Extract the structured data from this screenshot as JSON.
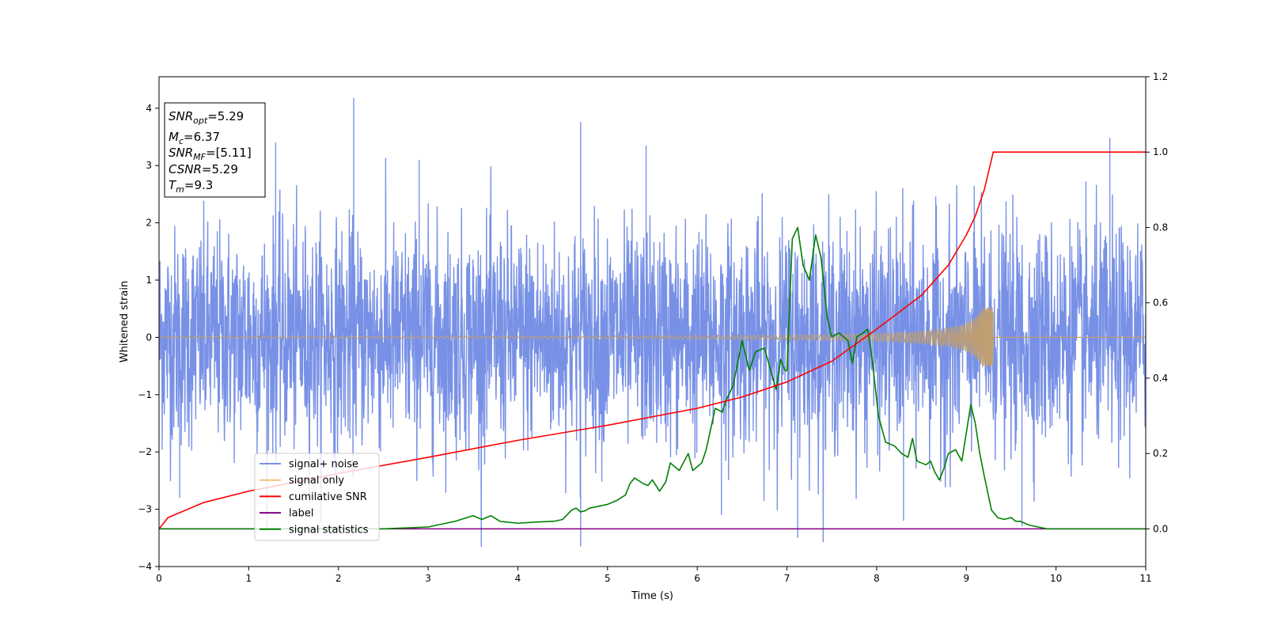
{
  "chart_data": {
    "type": "line",
    "title": "",
    "xlabel": "Time (s)",
    "ylabel": "Whitened strain",
    "xlim": [
      0,
      11
    ],
    "ylim_left": [
      -4,
      4.55
    ],
    "ylim_right": [
      -0.1,
      1.2
    ],
    "xticks": [
      "0",
      "1",
      "2",
      "3",
      "4",
      "5",
      "6",
      "7",
      "8",
      "9",
      "10",
      "11"
    ],
    "yticks_left": [
      "−4",
      "−3",
      "−2",
      "−1",
      "0",
      "1",
      "2",
      "3",
      "4"
    ],
    "yticks_right": [
      "0.0",
      "0.2",
      "0.4",
      "0.6",
      "0.8",
      "1.0",
      "1.2"
    ],
    "grid": false,
    "legend_placement": "lower-left",
    "legend": [
      {
        "label": "signal+ noise",
        "color": "#7891e6"
      },
      {
        "label": "signal only",
        "color": "#f5c27a"
      },
      {
        "label": "cumilative SNR",
        "color": "#ff0000"
      },
      {
        "label": "label",
        "color": "#800080"
      },
      {
        "label": "signal statistics",
        "color": "#008000"
      }
    ],
    "info_box": {
      "snr_opt": {
        "main": "SNR",
        "sub": "opt",
        "value": "=5.29"
      },
      "mc": {
        "main": "M",
        "sub": "c",
        "value": "=6.37"
      },
      "snr_mf": {
        "main": "SNR",
        "sub": "MF",
        "value": "=[5.11]"
      },
      "csnr": {
        "main": "CSNR",
        "value": "=5.29"
      },
      "tm": {
        "main": "T",
        "sub": "m",
        "value": "=9.3"
      }
    },
    "series": [
      {
        "name": "signal+ noise",
        "axis": "left",
        "color": "#7891e6",
        "noise_std": 1.0,
        "noise_range": [
          -3.65,
          4.18
        ],
        "spike_peaks": [
          {
            "x": 2.17,
            "y": 4.18
          },
          {
            "x": 4.7,
            "y": 3.76
          },
          {
            "x": 10.6,
            "y": 3.48
          },
          {
            "x": 1.3,
            "y": 3.4
          },
          {
            "x": 5.43,
            "y": 3.35
          },
          {
            "x": 2.9,
            "y": 3.1
          },
          {
            "x": 4.7,
            "y": -3.65
          },
          {
            "x": 7.12,
            "y": -3.5
          },
          {
            "x": 0.23,
            "y": -2.8
          },
          {
            "x": 6.27,
            "y": -3.1
          },
          {
            "x": 8.3,
            "y": -3.2
          },
          {
            "x": 9.62,
            "y": -3.3
          }
        ]
      },
      {
        "name": "signal only",
        "axis": "left",
        "color": "#f5c27a",
        "end_time": 9.3,
        "peak_amplitude": 0.52
      },
      {
        "name": "cumilative SNR",
        "axis": "right",
        "color": "#ff0000",
        "x": [
          0,
          0.1,
          0.5,
          1,
          2,
          3,
          4,
          5,
          6,
          6.5,
          7,
          7.5,
          8,
          8.5,
          8.8,
          9.0,
          9.1,
          9.2,
          9.28,
          9.3,
          11
        ],
        "y": [
          0.0,
          0.03,
          0.07,
          0.1,
          0.147,
          0.19,
          0.235,
          0.275,
          0.32,
          0.35,
          0.39,
          0.445,
          0.53,
          0.62,
          0.7,
          0.78,
          0.83,
          0.9,
          0.98,
          1.0,
          1.0
        ]
      },
      {
        "name": "label",
        "axis": "right",
        "color": "#800080",
        "x": [
          0,
          11
        ],
        "y": [
          0,
          0
        ]
      },
      {
        "name": "signal statistics",
        "axis": "right",
        "color": "#008000",
        "x": [
          0,
          2.5,
          3.0,
          3.3,
          3.5,
          3.6,
          3.7,
          3.8,
          4.0,
          4.2,
          4.4,
          4.5,
          4.6,
          4.65,
          4.7,
          4.75,
          4.8,
          5.0,
          5.1,
          5.2,
          5.25,
          5.3,
          5.4,
          5.45,
          5.5,
          5.58,
          5.65,
          5.7,
          5.8,
          5.9,
          5.95,
          6.05,
          6.1,
          6.2,
          6.28,
          6.32,
          6.4,
          6.5,
          6.58,
          6.65,
          6.75,
          6.83,
          6.88,
          6.93,
          6.98,
          7.0,
          7.06,
          7.12,
          7.18,
          7.25,
          7.32,
          7.38,
          7.45,
          7.5,
          7.58,
          7.68,
          7.73,
          7.78,
          7.85,
          7.9,
          7.95,
          8.02,
          8.1,
          8.2,
          8.28,
          8.35,
          8.4,
          8.45,
          8.55,
          8.6,
          8.65,
          8.7,
          8.75,
          8.8,
          8.88,
          8.95,
          9.05,
          9.1,
          9.15,
          9.2,
          9.28,
          9.35,
          9.42,
          9.5,
          9.55,
          9.6,
          9.7,
          9.8,
          9.9,
          10.0,
          10.3,
          11
        ],
        "y": [
          0.0,
          0.0,
          0.005,
          0.02,
          0.035,
          0.025,
          0.035,
          0.02,
          0.015,
          0.018,
          0.02,
          0.025,
          0.05,
          0.055,
          0.045,
          0.048,
          0.055,
          0.065,
          0.075,
          0.09,
          0.12,
          0.135,
          0.12,
          0.115,
          0.13,
          0.1,
          0.125,
          0.175,
          0.155,
          0.2,
          0.155,
          0.175,
          0.21,
          0.32,
          0.31,
          0.34,
          0.38,
          0.5,
          0.42,
          0.47,
          0.48,
          0.41,
          0.37,
          0.45,
          0.42,
          0.42,
          0.77,
          0.8,
          0.7,
          0.66,
          0.78,
          0.72,
          0.56,
          0.51,
          0.52,
          0.5,
          0.44,
          0.51,
          0.52,
          0.53,
          0.45,
          0.3,
          0.23,
          0.22,
          0.2,
          0.19,
          0.24,
          0.18,
          0.17,
          0.18,
          0.15,
          0.13,
          0.16,
          0.2,
          0.21,
          0.18,
          0.33,
          0.28,
          0.2,
          0.14,
          0.05,
          0.03,
          0.025,
          0.03,
          0.02,
          0.02,
          0.01,
          0.005,
          0.0,
          0.0,
          0.0,
          0.0
        ]
      }
    ]
  }
}
